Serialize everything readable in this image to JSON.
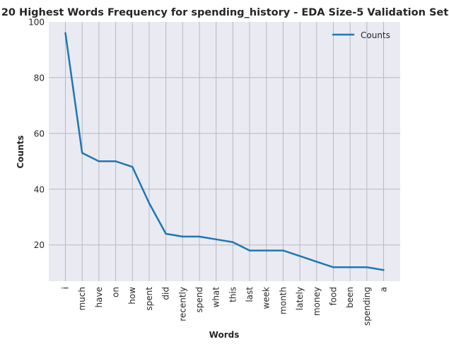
{
  "chart_data": {
    "type": "line",
    "title": "20 Highest Words Frequency for spending_history - EDA Size-5 Validation Set",
    "xlabel": "Words",
    "ylabel": "Counts",
    "categories": [
      "i",
      "much",
      "have",
      "on",
      "how",
      "spent",
      "did",
      "recently",
      "spend",
      "what",
      "this",
      "last",
      "week",
      "month",
      "lately",
      "money",
      "food",
      "been",
      "spending",
      "a"
    ],
    "series": [
      {
        "name": "Counts",
        "values": [
          96,
          53,
          50,
          50,
          48,
          35,
          24,
          23,
          23,
          22,
          21,
          18,
          18,
          18,
          16,
          14,
          12,
          12,
          12,
          11
        ],
        "color": "#1f77b4"
      }
    ],
    "ylim": [
      7,
      100
    ],
    "yticks": [
      20,
      40,
      60,
      80,
      100
    ],
    "grid": true,
    "legend_position": "top-right",
    "background_color": "#eaeaf2",
    "grid_color": "#b8b8c0"
  }
}
